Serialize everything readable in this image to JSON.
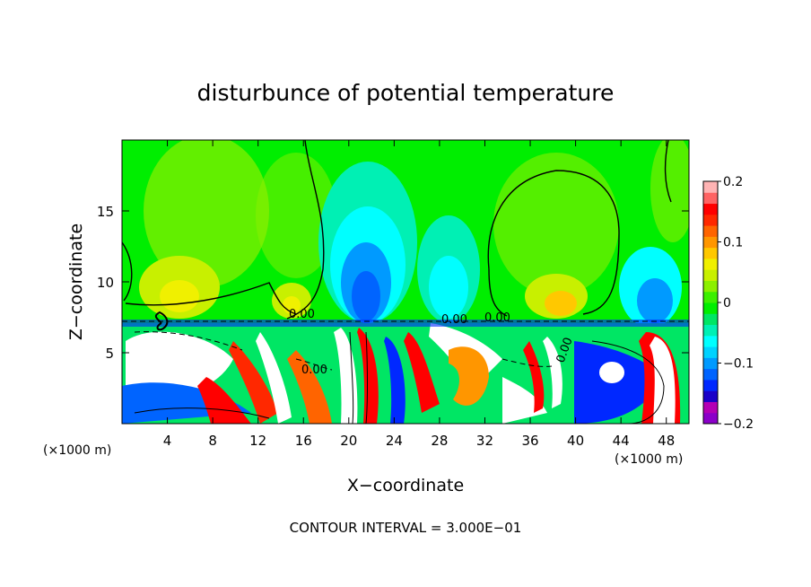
{
  "chart_data": {
    "type": "heatmap",
    "title": "disturbunce of potential temperature",
    "xlabel": "X−coordinate",
    "ylabel": "Z−coordinate",
    "x_unit_label_left": "(×1000 m)",
    "x_unit_label_right": "(×1000 m)",
    "footer": "CONTOUR INTERVAL = 3.000E−01",
    "xlim": [
      0,
      50
    ],
    "ylim": [
      0,
      20
    ],
    "x_ticks": [
      4,
      8,
      12,
      16,
      20,
      24,
      28,
      32,
      36,
      40,
      44,
      48
    ],
    "y_ticks": [
      5,
      10,
      15
    ],
    "colorbar": {
      "range": [
        -0.2,
        0.2
      ],
      "tick_values": [
        0.2,
        0.1,
        0,
        -0.1,
        -0.2
      ],
      "tick_labels": [
        "0.2",
        "0.1",
        "0",
        "−0.1",
        "−0.2"
      ],
      "colors": [
        "#8b00c9",
        "#b400b4",
        "#1a00c8",
        "#0028ff",
        "#0064ff",
        "#009aff",
        "#00d2ff",
        "#00ffff",
        "#00f0b4",
        "#00e664",
        "#00ee00",
        "#3cf000",
        "#8cf000",
        "#c8f000",
        "#f0f000",
        "#ffc800",
        "#ff9600",
        "#ff6400",
        "#ff2800",
        "#ff0000",
        "#ff6464",
        "#ffb4b4"
      ]
    },
    "contour_labels": [
      "0.00",
      "0.00",
      "0.00",
      "0.00",
      "0.00"
    ]
  }
}
